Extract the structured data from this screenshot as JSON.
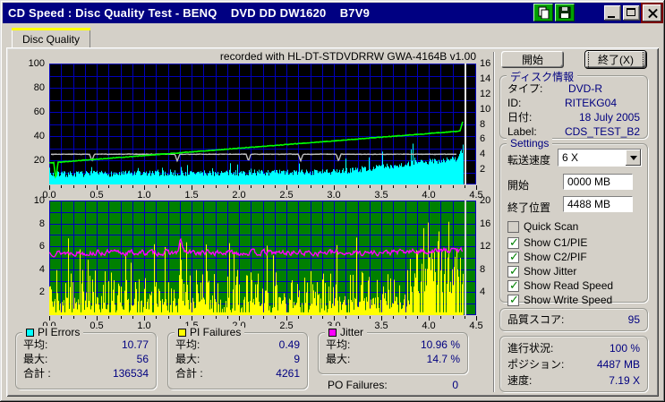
{
  "window": {
    "title": "CD Speed : Disc Quality Test - BENQ    DVD DD DW1620    B7V9"
  },
  "tab": {
    "label": "Disc Quality"
  },
  "chart_header": "recorded with HL-DT-STDVDRRW GWA-4164B v1.00",
  "chart_data": [
    {
      "type": "area",
      "name": "pi-errors-and-speed",
      "bg": "#000000",
      "grid_color": "#0000bb",
      "x": {
        "min": 0,
        "max": 4.5,
        "minor_step_gb": 0.125,
        "ticks": [
          "0.0",
          "0.5",
          "1.0",
          "1.5",
          "2.0",
          "2.5",
          "3.0",
          "3.5",
          "4.0",
          "4.5"
        ]
      },
      "axis_left": {
        "max": 100,
        "ticks": [
          100,
          80,
          60,
          40,
          20
        ],
        "grid_divisions": 10
      },
      "axis_right": {
        "max": 16,
        "ticks": [
          16,
          14,
          12,
          10,
          8,
          6,
          4,
          2
        ]
      },
      "data_end_gb": 4.37,
      "cursor_gb": 4.39,
      "cursor_color": "#e8e8e8",
      "series": [
        {
          "name": "pi-errors",
          "style": "spike-area",
          "color": "#00ffff",
          "axis": "left",
          "base_start": 8.5,
          "base_rise_to": 22,
          "noise": 5,
          "spike_chance": 0.07,
          "spike_max_start": 8,
          "spike_max_end": 30,
          "end_peak": 56,
          "seed": 7,
          "summary": {
            "avg": 10.77,
            "max": 56,
            "total": 136534
          }
        },
        {
          "name": "write-speed",
          "style": "flat-line",
          "color": "#c0c0c0",
          "axis": "right",
          "value": 4,
          "end_gb": 4.3,
          "dips_gb": [
            0.45,
            1.35,
            2.1,
            2.65,
            3.05
          ],
          "dip_depth": 0.9,
          "seed": 3
        },
        {
          "name": "read-speed",
          "style": "ramp-line",
          "color": "#00ff00",
          "axis": "right",
          "start_value": 2.85,
          "end_value": 7.1,
          "start_dip_gb": 0.07,
          "end_peak": 8.8,
          "noise": 0.08,
          "seed": 5
        }
      ]
    },
    {
      "type": "bars",
      "name": "pi-failures-and-jitter",
      "bg": "#008000",
      "grid_color": "#0000bb",
      "x": {
        "min": 0,
        "max": 4.5,
        "minor_step_gb": 0.125,
        "ticks": [
          "0.0",
          "0.5",
          "1.0",
          "1.5",
          "2.0",
          "2.5",
          "3.0",
          "3.5",
          "4.0",
          "4.5"
        ]
      },
      "axis_left": {
        "max": 10,
        "ticks": [
          10,
          8,
          6,
          4,
          2
        ],
        "grid_divisions": 10
      },
      "axis_right": {
        "max": 20,
        "ticks": [
          20,
          16,
          12,
          8,
          4
        ]
      },
      "data_end_gb": 4.37,
      "cursor_gb": 4.39,
      "cursor_color": "#d8d8d8",
      "series": [
        {
          "name": "pi-failures",
          "style": "spike-bars",
          "color": "#ffff00",
          "axis": "left",
          "base": 0.8,
          "noise": 2.2,
          "spike_chance": 0.045,
          "dense_after_gb": 3.8,
          "dense_base": 3,
          "max": 9,
          "peaks_gb": [
            [
              1.38,
              7.3
            ],
            [
              4.1,
              9
            ]
          ],
          "seed": 11,
          "summary": {
            "avg": 0.49,
            "max": 9,
            "total": 4261
          }
        },
        {
          "name": "jitter",
          "style": "noisy-line",
          "color": "#ff00ff",
          "axis": "right",
          "base": 10.9,
          "noise": 1.6,
          "peaks_gb": [
            [
              1.38,
              14.5
            ]
          ],
          "rise_after_gb": 3.5,
          "rise_amount": 0.55,
          "seed": 13,
          "summary": {
            "avg": "10.96 %",
            "max": "14.7 %"
          }
        }
      ]
    }
  ],
  "side_panel": {
    "start_button": "開始",
    "exit_button": "終了(X)",
    "disc_info": {
      "title": "ディスク情報",
      "rows": [
        {
          "label": "タイプ:",
          "value": "DVD-R"
        },
        {
          "label": "ID:",
          "value": "RITEKG04"
        },
        {
          "label": "日付:",
          "value": "18 July 2005"
        },
        {
          "label": "Label:",
          "value": "CDS_TEST_B2"
        }
      ]
    },
    "settings": {
      "title": "Settings",
      "speed_label": "転送速度",
      "speed_value": "6 X",
      "start_label": "開始",
      "start_value": "0000 MB",
      "end_label": "終了位置",
      "end_value": "4488 MB",
      "checkboxes": [
        {
          "label": "Quick Scan",
          "checked": false
        },
        {
          "label": "Show C1/PIE",
          "checked": true
        },
        {
          "label": "Show C2/PIF",
          "checked": true
        },
        {
          "label": "Show Jitter",
          "checked": true
        },
        {
          "label": "Show Read Speed",
          "checked": true
        },
        {
          "label": "Show Write Speed",
          "checked": true
        }
      ]
    },
    "score": {
      "label": "品質スコア:",
      "value": "95"
    },
    "progress": {
      "rows": [
        {
          "label": "進行状況:",
          "value": "100 %"
        },
        {
          "label": "ポジション:",
          "value": "4487 MB"
        },
        {
          "label": "速度:",
          "value": "7.19 X"
        }
      ]
    }
  },
  "stats": {
    "pi_errors": {
      "title": "PI Errors",
      "color": "#00ffff",
      "rows": [
        {
          "label": "平均:",
          "value": "10.77"
        },
        {
          "label": "最大:",
          "value": "56"
        },
        {
          "label": "合計 :",
          "value": "136534"
        }
      ]
    },
    "pi_failures": {
      "title": "PI Failures",
      "color": "#ffff00",
      "rows": [
        {
          "label": "平均:",
          "value": "0.49"
        },
        {
          "label": "最大:",
          "value": "9"
        },
        {
          "label": "合計 :",
          "value": "4261"
        }
      ]
    },
    "jitter": {
      "title": "Jitter",
      "color": "#ff00ff",
      "rows": [
        {
          "label": "平均:",
          "value": "10.96 %"
        },
        {
          "label": "最大:",
          "value": "14.7 %"
        }
      ]
    },
    "po_failures": {
      "label": "PO Failures:",
      "value": "0"
    }
  }
}
